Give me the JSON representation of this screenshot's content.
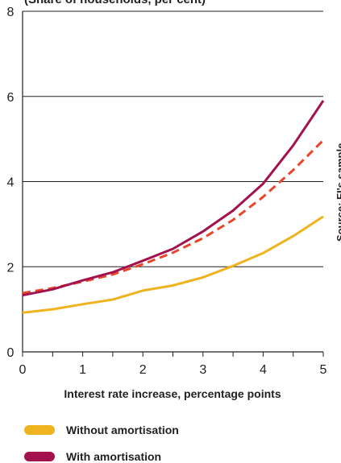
{
  "chart_data": {
    "type": "line",
    "title": "(Share of households, per cent)",
    "xlabel": "Interest rate increase, percentage points",
    "ylabel": "",
    "xlim": [
      0,
      5
    ],
    "ylim": [
      0,
      8
    ],
    "x_ticks": [
      "0",
      "1",
      "2",
      "3",
      "4",
      "5"
    ],
    "y_ticks": [
      "0",
      "2",
      "4",
      "6",
      "8"
    ],
    "grid": "horizontal",
    "x": [
      0,
      0.5,
      1,
      1.5,
      2,
      2.5,
      3,
      3.5,
      4,
      4.5,
      5
    ],
    "series": [
      {
        "name": "Without amortisation",
        "color": "#eeb31f",
        "style": "solid",
        "values": [
          0.92,
          1.0,
          1.12,
          1.23,
          1.44,
          1.56,
          1.75,
          2.02,
          2.32,
          2.72,
          3.18
        ]
      },
      {
        "name": "With amortisation",
        "color": "#a3124f",
        "style": "solid",
        "values": [
          1.33,
          1.47,
          1.68,
          1.87,
          2.14,
          2.42,
          2.83,
          3.32,
          3.95,
          4.85,
          5.9
        ]
      },
      {
        "name": "",
        "color": "#e8462b",
        "style": "dashed",
        "values": [
          1.38,
          1.5,
          1.65,
          1.82,
          2.06,
          2.33,
          2.67,
          3.1,
          3.64,
          4.27,
          4.97
        ]
      }
    ],
    "legend_position": "bottom"
  },
  "source": "Source: FI's sample."
}
